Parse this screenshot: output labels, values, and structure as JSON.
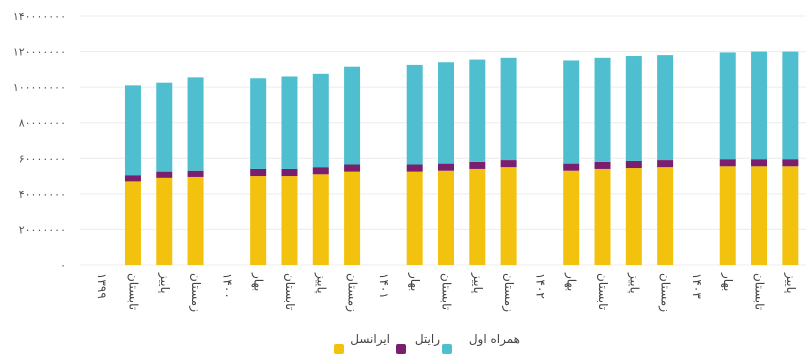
{
  "chart_data": {
    "type": "bar",
    "stacked": true,
    "ylim": [
      0,
      140000000
    ],
    "y_ticks": [
      0,
      20000000,
      40000000,
      60000000,
      80000000,
      100000000,
      120000000,
      140000000
    ],
    "y_tick_labels": [
      "۰",
      "۲۰۰۰۰۰۰۰",
      "۴۰۰۰۰۰۰۰",
      "۶۰۰۰۰۰۰۰",
      "۸۰۰۰۰۰۰۰",
      "۱۰۰۰۰۰۰۰۰",
      "۱۲۰۰۰۰۰۰۰",
      "۱۴۰۰۰۰۰۰۰"
    ],
    "grid": true,
    "legend_position": "bottom",
    "groups": [
      {
        "year": "۱۳۹۹",
        "categories": [
          "تابستان",
          "پاییز",
          "زمستان"
        ]
      },
      {
        "year": "۱۴۰۰",
        "categories": [
          "بهار",
          "تابستان",
          "پاییز",
          "زمستان"
        ]
      },
      {
        "year": "۱۴۰۱",
        "categories": [
          "بهار",
          "تابستان",
          "پاییز",
          "زمستان"
        ]
      },
      {
        "year": "۱۴۰۲",
        "categories": [
          "بهار",
          "تابستان",
          "پاییز",
          "زمستان"
        ]
      },
      {
        "year": "۱۴۰۳",
        "categories": [
          "بهار",
          "تابستان",
          "پاییز"
        ]
      }
    ],
    "series": [
      {
        "name": "ایرانسل",
        "color": "#f2c20f",
        "values": [
          47000000,
          49000000,
          49500000,
          50000000,
          50000000,
          51000000,
          52500000,
          52500000,
          53000000,
          54000000,
          55000000,
          53000000,
          54000000,
          54500000,
          55000000,
          55500000,
          55500000,
          55500000
        ]
      },
      {
        "name": "رایتل",
        "color": "#7a1f6e",
        "values": [
          3500000,
          3500000,
          3500000,
          4000000,
          4000000,
          4000000,
          4000000,
          4000000,
          4000000,
          4000000,
          4000000,
          4000000,
          4000000,
          4000000,
          4000000,
          4000000,
          4000000,
          4000000
        ]
      },
      {
        "name": "همراه اول",
        "color": "#4fbfd0",
        "values": [
          50500000,
          50000000,
          52500000,
          51000000,
          52000000,
          52500000,
          55000000,
          56000000,
          57000000,
          57500000,
          57500000,
          58000000,
          58500000,
          59000000,
          59000000,
          60000000,
          60500000,
          60500000
        ]
      }
    ]
  }
}
